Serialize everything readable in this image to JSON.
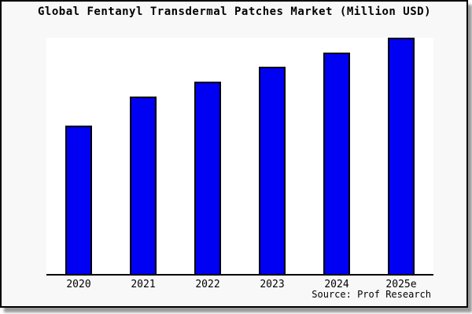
{
  "page": {
    "background": "#ffffff",
    "card_background": "#f8f8f8",
    "frame_border_color": "#000000",
    "shadow_color": "#9a9a9a"
  },
  "chart_data": {
    "type": "bar",
    "title": "Global Fentanyl Transdermal Patches Market (Million USD)",
    "categories": [
      "2020",
      "2021",
      "2022",
      "2023",
      "2024",
      "2025e"
    ],
    "values_pct_of_max": [
      62.8,
      75.1,
      81.4,
      87.7,
      93.7,
      100
    ],
    "xlabel": "",
    "ylabel": "",
    "y_axis_ticks": "none shown",
    "grid": false,
    "legend": false,
    "bar_color": "#0000f2",
    "bar_border_color": "#000000",
    "source_note": "Source: Prof Research"
  }
}
